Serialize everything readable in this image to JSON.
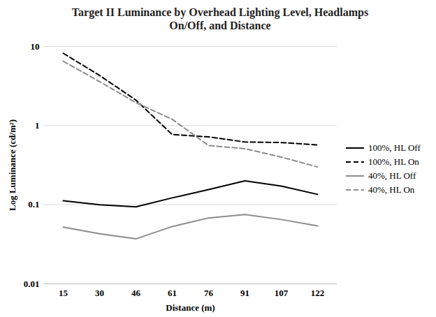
{
  "chart_data": {
    "type": "line",
    "title": "Target II Luminance by Overhead Lighting Level, Headlamps On/Off, and Distance",
    "x_label": "Distance (m)",
    "y_label": "Log Luminance (cd/m²)",
    "categories": [
      15,
      30,
      46,
      61,
      76,
      91,
      107,
      122
    ],
    "series": [
      {
        "name": "100%, HL Off",
        "color": "#000000",
        "line_style": "solid",
        "values": [
          0.112,
          0.1,
          0.094,
          0.122,
          0.155,
          0.2,
          0.172,
          0.135
        ]
      },
      {
        "name": "100%, HL On",
        "color": "#000000",
        "line_style": "dashed",
        "values": [
          8.2,
          4.3,
          2.1,
          0.77,
          0.72,
          0.62,
          0.61,
          0.57
        ]
      },
      {
        "name": "40%, HL Off",
        "color": "#8c8c8c",
        "line_style": "solid",
        "values": [
          0.052,
          0.043,
          0.037,
          0.053,
          0.068,
          0.075,
          0.065,
          0.054
        ]
      },
      {
        "name": "40%, HL On",
        "color": "#8c8c8c",
        "line_style": "dashed",
        "values": [
          6.5,
          3.6,
          1.95,
          1.2,
          0.56,
          0.51,
          0.4,
          0.3
        ]
      }
    ],
    "ylim": [
      0.01,
      10
    ],
    "yticks": [
      0.01,
      0.1,
      1,
      10
    ],
    "log": "y",
    "grid": true,
    "legend": "right"
  }
}
